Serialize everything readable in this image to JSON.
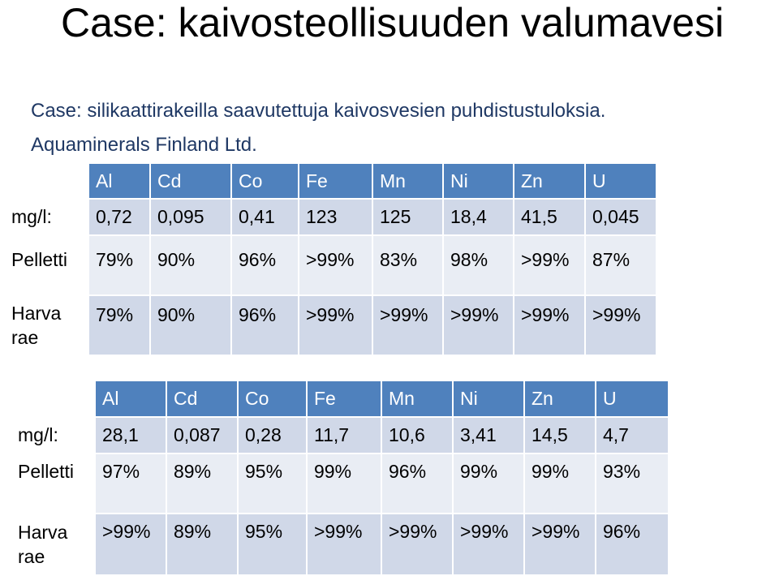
{
  "title": "Case: kaivosteollisuuden valumavesi",
  "subtitle_line1": "Case: silikaattirakeilla saavutettuja  kaivosvesien puhdistustuloksia.",
  "subtitle_line2": "Aquaminerals Finland Ltd.",
  "table1": {
    "headers": [
      "Al",
      "Cd",
      "Co",
      "Fe",
      "Mn",
      "Ni",
      "Zn",
      "U"
    ],
    "rows": [
      {
        "label": "mg/l:",
        "values": [
          "0,72",
          "0,095",
          "0,41",
          "123",
          "125",
          "18,4",
          "41,5",
          "0,045"
        ]
      },
      {
        "label": "Pelletti",
        "values": [
          "79%",
          "90%",
          "96%",
          ">99%",
          "83%",
          "98%",
          ">99%",
          "87%"
        ]
      },
      {
        "label_line1": "Harva",
        "label_line2": "rae",
        "values": [
          "79%",
          "90%",
          "96%",
          ">99%",
          ">99%",
          ">99%",
          ">99%",
          ">99%"
        ]
      }
    ]
  },
  "table2": {
    "headers": [
      "Al",
      "Cd",
      "Co",
      "Fe",
      "Mn",
      "Ni",
      "Zn",
      "U"
    ],
    "rows": [
      {
        "label": "mg/l:",
        "values": [
          "28,1",
          "0,087",
          "0,28",
          "11,7",
          "10,6",
          "3,41",
          "14,5",
          "4,7"
        ]
      },
      {
        "label": "Pelletti",
        "values": [
          "97%",
          "89%",
          "95%",
          "99%",
          "96%",
          "99%",
          "99%",
          "93%"
        ]
      },
      {
        "label_line1": "Harva",
        "label_line2": "rae",
        "values": [
          ">99%",
          "89%",
          "95%",
          ">99%",
          ">99%",
          ">99%",
          ">99%",
          "96%"
        ]
      }
    ]
  },
  "colors": {
    "header_bg": "#4f81bd",
    "row_dark": "#d0d8e8",
    "row_light": "#e9edf4",
    "subtitle_text": "#1f3864"
  }
}
